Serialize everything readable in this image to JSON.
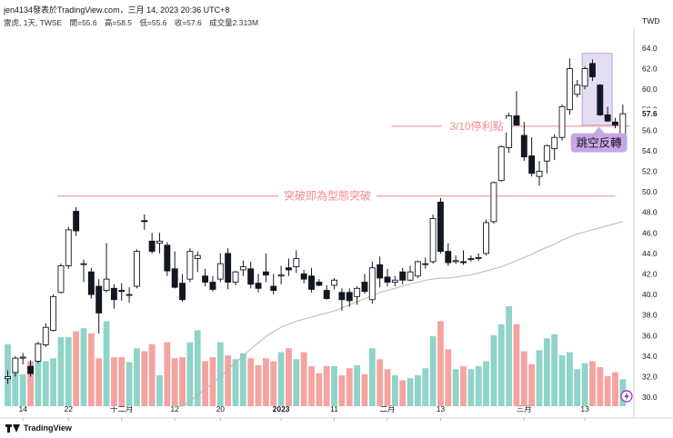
{
  "header": {
    "line1": "jen4134發表於TradingView.com，三月 14, 2023 20:36 UTC+8",
    "symbol": "雷虎, 1天, TWSE",
    "open": "開=55.6",
    "high": "高=58.5",
    "low": "低=55.6",
    "close": "收=57.6",
    "volume": "成交量2.313M"
  },
  "footer": {
    "brand": "TradingView"
  },
  "chart_data": {
    "type": "candlestick",
    "currency": "TWD",
    "ylim": [
      28.5,
      65.5
    ],
    "y_ticks": [
      "64.0",
      "62.0",
      "60.0",
      "58.0",
      "56.0",
      "54.0",
      "52.0",
      "50.0",
      "48.0",
      "46.0",
      "44.0",
      "42.0",
      "40.0",
      "38.0",
      "36.0",
      "34.0",
      "32.0",
      "30.0"
    ],
    "x_ticks": [
      {
        "label": "14",
        "index": 2
      },
      {
        "label": "22",
        "index": 8
      },
      {
        "label": "十二月",
        "index": 15
      },
      {
        "label": "12",
        "index": 22
      },
      {
        "label": "20",
        "index": 28
      },
      {
        "label": "2023",
        "index": 36
      },
      {
        "label": "11",
        "index": 43
      },
      {
        "label": "二月",
        "index": 50
      },
      {
        "label": "13",
        "index": 57
      },
      {
        "label": "三月",
        "index": 68
      },
      {
        "label": "13",
        "index": 76
      }
    ],
    "last_price": {
      "label": "57.6",
      "value": 57.6
    },
    "candles": [
      [
        31.8,
        32.6,
        31.3,
        32.0
      ],
      [
        32.4,
        34.0,
        32.0,
        33.8
      ],
      [
        33.8,
        34.3,
        33.2,
        33.9
      ],
      [
        33.0,
        33.6,
        32.0,
        32.3
      ],
      [
        33.5,
        35.4,
        33.3,
        35.2
      ],
      [
        35.1,
        37.2,
        34.9,
        36.8
      ],
      [
        36.5,
        40.0,
        36.4,
        39.8
      ],
      [
        40.2,
        43.0,
        40.1,
        42.8
      ],
      [
        42.8,
        46.6,
        42.5,
        46.3
      ],
      [
        48.1,
        48.5,
        45.7,
        46.2
      ],
      [
        43.0,
        43.4,
        41.2,
        43.0
      ],
      [
        42.2,
        42.6,
        39.6,
        40.0
      ],
      [
        40.8,
        41.5,
        36.2,
        38.2
      ],
      [
        40.4,
        45.0,
        40.2,
        41.5
      ],
      [
        40.6,
        41.0,
        38.6,
        39.5
      ],
      [
        40.4,
        41.1,
        39.4,
        40.3
      ],
      [
        40.0,
        40.7,
        39.2,
        40.0
      ],
      [
        40.8,
        44.4,
        40.6,
        44.2
      ],
      [
        47.2,
        47.8,
        46.3,
        47.1
      ],
      [
        45.2,
        46.0,
        44.0,
        44.2
      ],
      [
        45.0,
        46.0,
        44.0,
        45.2
      ],
      [
        44.8,
        45.1,
        41.8,
        42.3
      ],
      [
        42.5,
        44.2,
        40.6,
        40.7
      ],
      [
        41.1,
        42.0,
        39.3,
        39.5
      ],
      [
        41.5,
        44.5,
        41.2,
        44.2
      ],
      [
        43.5,
        44.2,
        42.2,
        43.8
      ],
      [
        41.8,
        42.5,
        40.8,
        41.2
      ],
      [
        41.2,
        41.8,
        40.3,
        40.5
      ],
      [
        41.5,
        44.0,
        41.2,
        43.0
      ],
      [
        44.0,
        44.5,
        40.5,
        41.2
      ],
      [
        41.2,
        42.3,
        40.9,
        42.2
      ],
      [
        42.4,
        43.3,
        41.8,
        42.7
      ],
      [
        42.5,
        43.2,
        40.6,
        41.0
      ],
      [
        41.1,
        42.0,
        40.2,
        40.6
      ],
      [
        42.2,
        44.0,
        41.2,
        41.9
      ],
      [
        40.8,
        42.0,
        40.0,
        40.4
      ],
      [
        41.8,
        42.8,
        41.0,
        41.9
      ],
      [
        42.6,
        43.5,
        41.8,
        42.4
      ],
      [
        42.7,
        44.3,
        42.1,
        43.5
      ],
      [
        42.0,
        42.4,
        41.1,
        41.5
      ],
      [
        41.8,
        42.6,
        40.2,
        40.5
      ],
      [
        41.2,
        41.5,
        40.8,
        40.9
      ],
      [
        40.4,
        40.9,
        39.5,
        39.6
      ],
      [
        40.9,
        41.6,
        40.5,
        41.4
      ],
      [
        40.2,
        40.6,
        38.4,
        39.5
      ],
      [
        40.2,
        40.6,
        38.8,
        39.4
      ],
      [
        39.8,
        40.8,
        39.0,
        40.6
      ],
      [
        41.2,
        42.0,
        40.1,
        40.3
      ],
      [
        39.5,
        43.2,
        39.1,
        42.6
      ],
      [
        42.9,
        43.7,
        40.7,
        41.6
      ],
      [
        41.7,
        42.5,
        40.8,
        41.2
      ],
      [
        41.2,
        41.8,
        40.8,
        41.4
      ],
      [
        42.2,
        42.6,
        41.0,
        41.4
      ],
      [
        41.4,
        42.8,
        41.3,
        42.2
      ],
      [
        41.8,
        43.3,
        41.6,
        43.2
      ],
      [
        43.0,
        43.6,
        42.5,
        43.0
      ],
      [
        43.2,
        47.8,
        43.0,
        47.4
      ],
      [
        49.0,
        49.4,
        44.0,
        44.2
      ],
      [
        44.2,
        45.0,
        42.8,
        43.1
      ],
      [
        43.2,
        43.8,
        43.0,
        43.3
      ],
      [
        43.2,
        44.3,
        42.9,
        43.1
      ],
      [
        43.5,
        43.8,
        43.2,
        43.5
      ],
      [
        43.6,
        44.0,
        43.3,
        43.6
      ],
      [
        44.0,
        47.3,
        43.8,
        47.0
      ],
      [
        47.1,
        51.0,
        46.9,
        50.9
      ],
      [
        51.1,
        54.5,
        51.0,
        54.4
      ],
      [
        54.3,
        57.7,
        53.8,
        57.4
      ],
      [
        57.4,
        59.8,
        56.5,
        56.5
      ],
      [
        55.5,
        56.8,
        53.0,
        53.4
      ],
      [
        53.5,
        55.3,
        51.5,
        51.8
      ],
      [
        51.5,
        53.0,
        50.6,
        52.0
      ],
      [
        53.0,
        54.6,
        51.8,
        54.5
      ],
      [
        54.2,
        55.6,
        53.1,
        55.3
      ],
      [
        55.3,
        58.5,
        55.0,
        58.3
      ],
      [
        58.0,
        63.0,
        57.5,
        62.0
      ],
      [
        59.5,
        60.9,
        59.2,
        60.4
      ],
      [
        60.3,
        62.2,
        60.0,
        62.0
      ],
      [
        62.5,
        62.9,
        60.8,
        61.2
      ],
      [
        60.4,
        60.5,
        57.4,
        57.5
      ],
      [
        57.5,
        58.3,
        56.8,
        56.9
      ],
      [
        56.8,
        57.2,
        56.2,
        56.5
      ],
      [
        55.6,
        58.5,
        55.6,
        57.6
      ]
    ],
    "volume_relative": [
      0.62,
      0.44,
      0.32,
      0.45,
      0.45,
      0.45,
      0.48,
      0.69,
      0.69,
      0.75,
      0.78,
      0.73,
      0.48,
      0.85,
      0.49,
      0.49,
      0.44,
      0.58,
      0.55,
      0.62,
      0.31,
      0.64,
      0.48,
      0.49,
      0.64,
      0.76,
      0.45,
      0.49,
      0.64,
      0.51,
      0.47,
      0.53,
      0.48,
      0.41,
      0.48,
      0.45,
      0.54,
      0.58,
      0.47,
      0.54,
      0.4,
      0.33,
      0.4,
      0.4,
      0.31,
      0.38,
      0.41,
      0.32,
      0.58,
      0.47,
      0.37,
      0.31,
      0.26,
      0.28,
      0.31,
      0.38,
      0.7,
      0.85,
      0.57,
      0.37,
      0.4,
      0.37,
      0.4,
      0.45,
      0.71,
      0.82,
      1.0,
      0.82,
      0.55,
      0.42,
      0.56,
      0.68,
      0.72,
      0.51,
      0.54,
      0.37,
      0.43,
      0.45,
      0.39,
      0.3,
      0.34,
      0.27
    ],
    "moving_average": {
      "start_index": 22,
      "values": [
        28.4,
        29.0,
        29.6,
        30.2,
        30.8,
        31.4,
        32.0,
        32.7,
        33.4,
        34.0,
        34.7,
        35.3,
        35.9,
        36.4,
        36.8,
        37.1,
        37.4,
        37.6,
        37.8,
        38.0,
        38.2,
        38.4,
        38.7,
        39.0,
        39.3,
        39.6,
        39.9,
        40.2,
        40.4,
        40.6,
        40.8,
        41.0,
        41.2,
        41.4,
        41.5,
        41.6,
        41.6,
        41.7,
        41.8,
        41.9,
        42.1,
        42.3,
        42.5,
        42.7,
        43.0,
        43.3,
        43.6,
        43.9,
        44.3,
        44.6,
        44.9,
        45.3,
        45.6,
        45.9,
        46.1,
        46.3,
        46.5,
        46.7,
        46.9,
        47.1
      ]
    },
    "annotations": [
      {
        "text": "3/10停利點",
        "value": 56.4,
        "type": "hline",
        "x_from_index": 51,
        "x_to_index": 82
      },
      {
        "text": "突破即為型態突破",
        "value": 49.6,
        "type": "hline",
        "x_from_index": 7,
        "x_to_index": 80
      },
      {
        "text": "跳空反轉",
        "type": "callout",
        "index_from": 76,
        "index_to": 79,
        "price_from": 56.5,
        "price_to": 63.5
      }
    ]
  }
}
